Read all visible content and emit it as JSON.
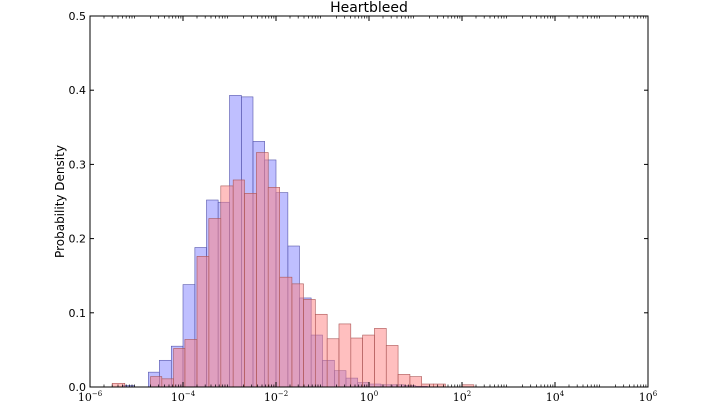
{
  "chart_data": {
    "type": "bar",
    "title": "Heartbleed",
    "xlabel": "",
    "ylabel": "Probability Density",
    "x_scale": "log",
    "xlim": [
      1e-06,
      1000000.0
    ],
    "ylim": [
      0,
      0.5
    ],
    "y_ticks": [
      "0.0",
      "0.1",
      "0.2",
      "0.3",
      "0.4",
      "0.5"
    ],
    "x_ticks": [
      {
        "base": "10",
        "exp": "−6",
        "value": 1e-06
      },
      {
        "base": "10",
        "exp": "−4",
        "value": 0.0001
      },
      {
        "base": "10",
        "exp": "−2",
        "value": 0.01
      },
      {
        "base": "10",
        "exp": "0",
        "value": 1
      },
      {
        "base": "10",
        "exp": "2",
        "value": 100
      },
      {
        "base": "10",
        "exp": "4",
        "value": 10000
      },
      {
        "base": "10",
        "exp": "6",
        "value": 1000000
      }
    ],
    "grid": false,
    "legend": "none",
    "series": [
      {
        "color": "#7f7fff",
        "edge": "#5555aa",
        "opacity": 0.5,
        "bins": [
          [
            5e-06,
            9e-06,
            0.002
          ],
          [
            1.8e-05,
            3.1e-05,
            0.02
          ],
          [
            3.1e-05,
            5.6e-05,
            0.036
          ],
          [
            5.6e-05,
            0.0001,
            0.055
          ],
          [
            0.0001,
            0.00018,
            0.138
          ],
          [
            0.00018,
            0.00032,
            0.188
          ],
          [
            0.00032,
            0.00057,
            0.252
          ],
          [
            0.00057,
            0.001,
            0.249
          ],
          [
            0.001,
            0.0018,
            0.393
          ],
          [
            0.0018,
            0.0032,
            0.391
          ],
          [
            0.0032,
            0.0057,
            0.331
          ],
          [
            0.0057,
            0.01,
            0.306
          ],
          [
            0.01,
            0.018,
            0.262
          ],
          [
            0.018,
            0.032,
            0.19
          ],
          [
            0.032,
            0.057,
            0.12
          ],
          [
            0.057,
            0.1,
            0.07
          ],
          [
            0.1,
            0.18,
            0.036
          ],
          [
            0.18,
            0.32,
            0.022
          ],
          [
            0.32,
            0.57,
            0.012
          ],
          [
            0.57,
            1.0,
            0.006
          ],
          [
            1.0,
            1.8,
            0.004
          ],
          [
            1.8,
            3.2,
            0.003
          ],
          [
            3.2,
            5.7,
            0.003
          ],
          [
            5.7,
            10,
            0.002
          ],
          [
            10,
            18,
            0.001
          ]
        ]
      },
      {
        "color": "#ff7f7f",
        "edge": "#aa5555",
        "opacity": 0.5,
        "bins": [
          [
            3e-06,
            5.6e-06,
            0.005
          ],
          [
            2e-05,
            3.5e-05,
            0.014
          ],
          [
            3.5e-05,
            6.3e-05,
            0.011
          ],
          [
            6.3e-05,
            0.00011,
            0.052
          ],
          [
            0.00011,
            0.0002,
            0.064
          ],
          [
            0.0002,
            0.00036,
            0.176
          ],
          [
            0.00036,
            0.00065,
            0.227
          ],
          [
            0.00065,
            0.0012,
            0.271
          ],
          [
            0.0012,
            0.0021,
            0.279
          ],
          [
            0.0021,
            0.0038,
            0.261
          ],
          [
            0.0038,
            0.0068,
            0.316
          ],
          [
            0.0068,
            0.012,
            0.269
          ],
          [
            0.012,
            0.022,
            0.148
          ],
          [
            0.022,
            0.039,
            0.139
          ],
          [
            0.039,
            0.07,
            0.118
          ],
          [
            0.07,
            0.126,
            0.098
          ],
          [
            0.126,
            0.226,
            0.065
          ],
          [
            0.226,
            0.406,
            0.085
          ],
          [
            0.406,
            0.729,
            0.066
          ],
          [
            0.729,
            1.31,
            0.07
          ],
          [
            1.31,
            2.35,
            0.079
          ],
          [
            2.35,
            4.22,
            0.056
          ],
          [
            4.22,
            7.58,
            0.017
          ],
          [
            7.58,
            13.6,
            0.014
          ],
          [
            13.6,
            24.5,
            0.004
          ],
          [
            24.5,
            44.0,
            0.004
          ],
          [
            100,
            180,
            0.003
          ]
        ]
      }
    ]
  }
}
